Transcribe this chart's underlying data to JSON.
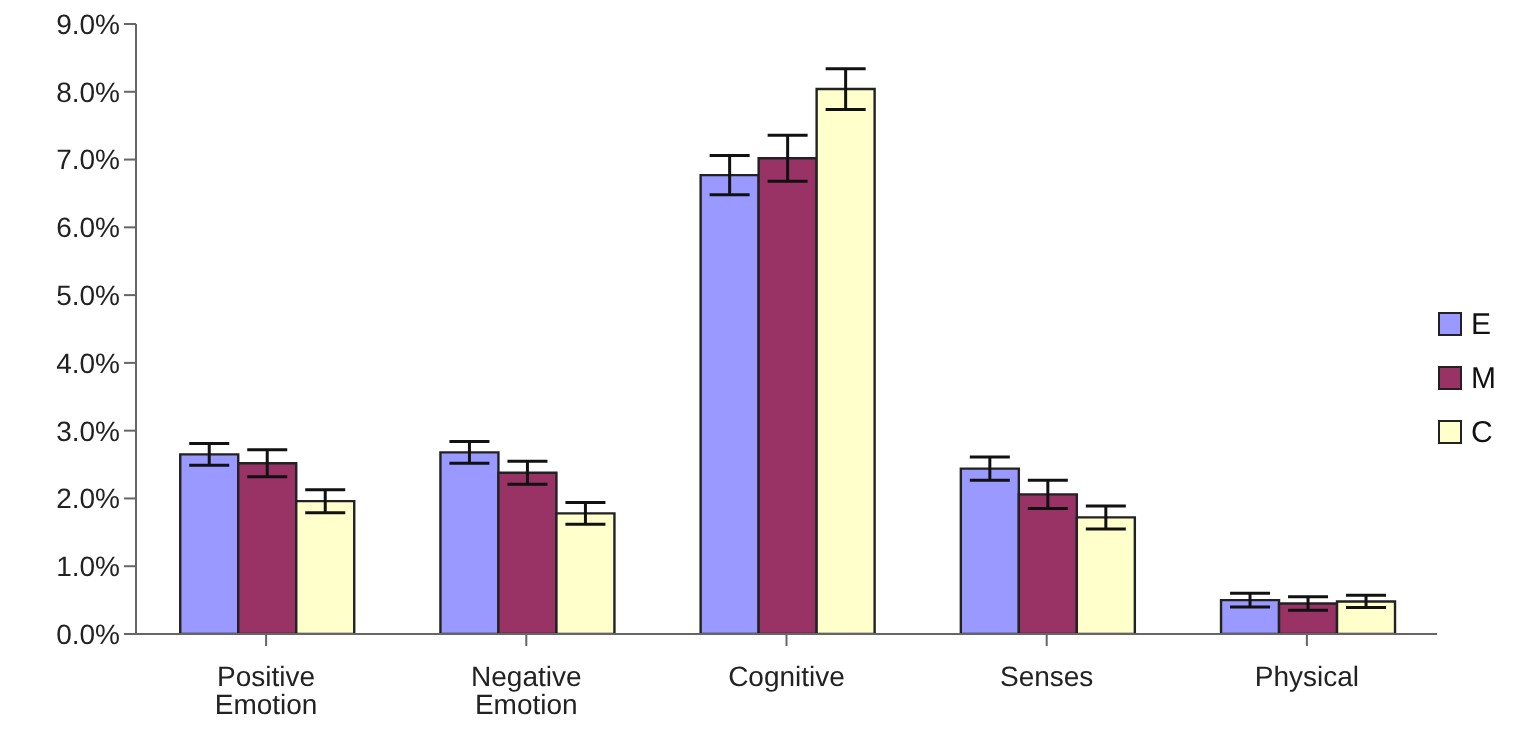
{
  "chart_data": {
    "type": "bar",
    "categories": [
      "Positive Emotion",
      "Negative Emotion",
      "Cognitive",
      "Senses",
      "Physical"
    ],
    "series": [
      {
        "name": "E",
        "color": "#9999ff",
        "values": [
          2.65,
          2.68,
          6.77,
          2.44,
          0.5
        ],
        "errors": [
          0.16,
          0.16,
          0.29,
          0.17,
          0.1
        ]
      },
      {
        "name": "M",
        "color": "#993366",
        "values": [
          2.52,
          2.38,
          7.02,
          2.06,
          0.45
        ],
        "errors": [
          0.2,
          0.17,
          0.34,
          0.21,
          0.1
        ]
      },
      {
        "name": "C",
        "color": "#ffffcc",
        "values": [
          1.96,
          1.78,
          8.04,
          1.72,
          0.48
        ],
        "errors": [
          0.17,
          0.16,
          0.3,
          0.17,
          0.09
        ]
      }
    ],
    "ylim": [
      0,
      9
    ],
    "yticks": [
      {
        "value": 0,
        "label": "0.0%"
      },
      {
        "value": 1,
        "label": "1.0%"
      },
      {
        "value": 2,
        "label": "2.0%"
      },
      {
        "value": 3,
        "label": "3.0%"
      },
      {
        "value": 4,
        "label": "4.0%"
      },
      {
        "value": 5,
        "label": "5.0%"
      },
      {
        "value": 6,
        "label": "6.0%"
      },
      {
        "value": 7,
        "label": "7.0%"
      },
      {
        "value": 8,
        "label": "8.0%"
      },
      {
        "value": 9,
        "label": "9.0%"
      }
    ],
    "grid": false,
    "legend": "right"
  }
}
